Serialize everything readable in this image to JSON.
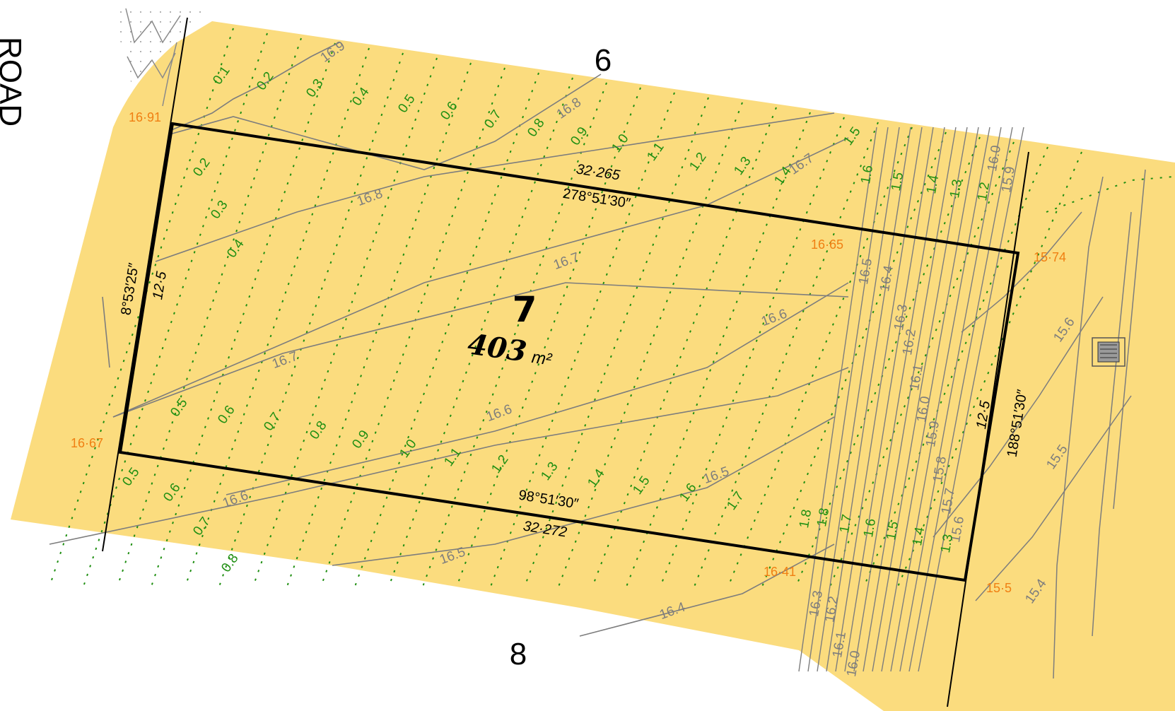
{
  "lot": {
    "number": "7",
    "area": "403",
    "area_unit": "m²"
  },
  "adjacent_lots": {
    "north": "6",
    "south": "8"
  },
  "road_label": "ROAD",
  "boundaries": {
    "north": {
      "distance": "32·265",
      "bearing": "278°51′30″"
    },
    "south": {
      "distance": "32·272",
      "bearing": "98°51′30″"
    },
    "west": {
      "distance": "12·5",
      "bearing": "8°53′25″"
    },
    "east": {
      "distance": "12·5",
      "bearing": "188°51′30″"
    }
  },
  "spot_levels": {
    "nw": "16·91",
    "ne_inner": "16·65",
    "ne_outer": "15·74",
    "sw": "16·67",
    "se_inner": "16·41",
    "se_outer": "15·5"
  },
  "contour_labels": {
    "main": [
      "16.9",
      "16.8",
      "16.8",
      "16.7",
      "16.7",
      "16.7",
      "16.6",
      "16.6",
      "16.6",
      "16.5",
      "16.5",
      "16.4"
    ],
    "batter": [
      "16.5",
      "16.4",
      "16.3",
      "16.2",
      "16.1",
      "16.0",
      "15.9",
      "15.8",
      "15.7",
      "15.6",
      "16.0",
      "15.9",
      "16.3",
      "16.2",
      "16.1",
      "16.0"
    ],
    "east": [
      "15.6",
      "15.5",
      "15.4"
    ]
  },
  "cut_fill_labels": {
    "row_top": [
      "0.1",
      "0.2",
      "0.3",
      "0.4",
      "0.5",
      "0.6",
      "0.7",
      "0.8",
      "0.9",
      "1.0",
      "1.1",
      "1.2",
      "1.3",
      "1.4",
      "1.5"
    ],
    "row_upper": [
      "0.2",
      "0.3",
      "0.4"
    ],
    "row_middle": [
      "0.5",
      "0.6",
      "0.7",
      "0.8",
      "0.9",
      "1.0",
      "1.1",
      "1.2",
      "1.3",
      "1.4",
      "1.5",
      "1.6",
      "1.7"
    ],
    "row_bottom": [
      "0.5",
      "0.6",
      "0.7",
      "0.8"
    ],
    "batter_upper": [
      "1.6",
      "1.5",
      "1.4",
      "1.3",
      "1.2"
    ],
    "batter_lower": [
      "1.8",
      "1.8",
      "1.7",
      "1.6",
      "1.5",
      "1.4",
      "1.3"
    ]
  },
  "colors": {
    "fill_area": "#fbdc7e",
    "boundary": "#000000",
    "contour": "#7d7d7d",
    "cut_fill": "#1f8f12",
    "spot_level": "#f07f12"
  }
}
